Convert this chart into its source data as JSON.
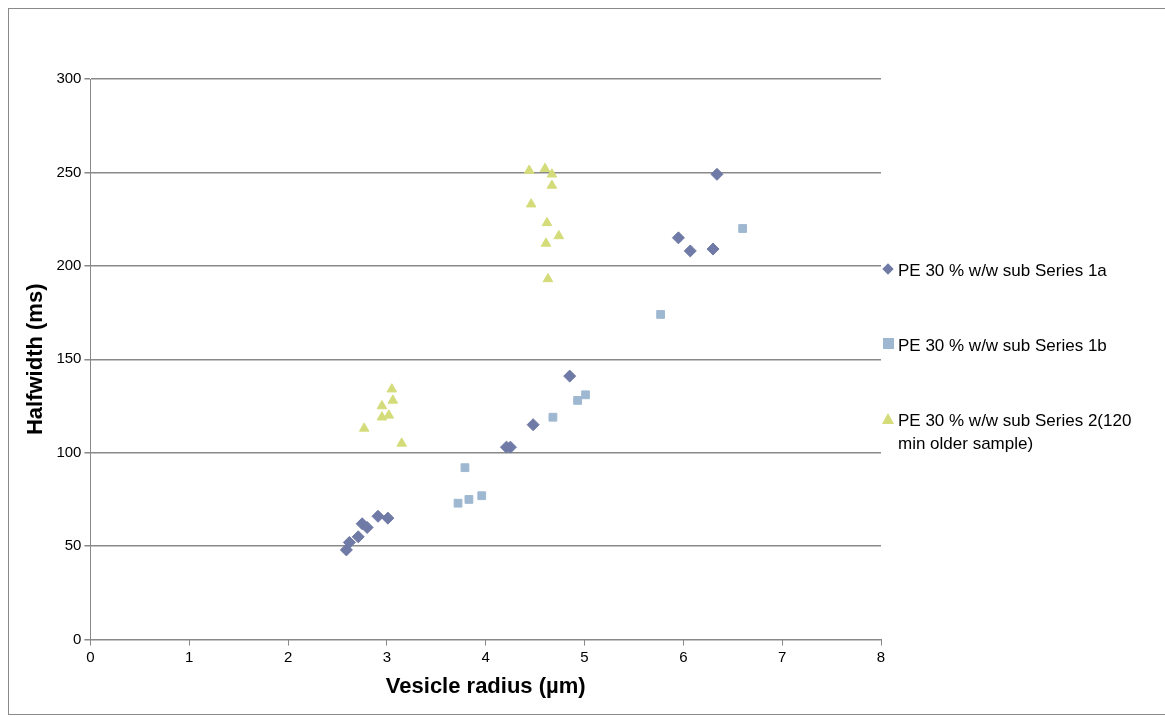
{
  "chart_data": {
    "type": "scatter",
    "xlabel": "Vesicle radius (µm)",
    "ylabel": "Halfwidth (ms)",
    "xlim": [
      0,
      8
    ],
    "xticks": [
      0,
      1,
      2,
      3,
      4,
      5,
      6,
      7,
      8
    ],
    "ylim": [
      0,
      300
    ],
    "yticks": [
      0,
      50,
      100,
      150,
      200,
      250,
      300
    ],
    "grid": "y",
    "legend": "right",
    "series": [
      {
        "name": "PE 30 % w/w sub Series 1a",
        "color": "#6f7aa6",
        "marker": "diamond",
        "x": [
          2.59,
          2.62,
          2.71,
          2.75,
          2.8,
          2.91,
          3.01,
          4.21,
          4.25,
          4.48,
          4.85,
          5.95,
          6.07,
          6.3,
          6.34
        ],
        "values": [
          48,
          52,
          55,
          62,
          60,
          66,
          65,
          103,
          103,
          115,
          141,
          215,
          208,
          209,
          249
        ]
      },
      {
        "name": "PE 30 % w/w sub Series 1b",
        "color": "#9fb8d1",
        "marker": "square",
        "x": [
          3.79,
          3.72,
          3.83,
          3.96,
          4.68,
          4.93,
          5.01,
          5.77,
          6.6
        ],
        "values": [
          92,
          73,
          75,
          77,
          119,
          128,
          131,
          174,
          220
        ]
      },
      {
        "name": "PE 30 % w/w sub Series 2(120 min older sample)",
        "color": "#d4dc7a",
        "marker": "triangle",
        "x": [
          4.44,
          4.6,
          4.67,
          4.67,
          4.46,
          4.62,
          4.61,
          4.74,
          4.63,
          3.05,
          3.06,
          2.95,
          2.95,
          3.02,
          2.77,
          3.15
        ],
        "values": [
          251,
          252,
          249,
          243,
          233,
          223,
          212,
          216,
          193,
          134,
          128,
          125,
          119,
          120,
          113,
          105
        ]
      }
    ]
  }
}
